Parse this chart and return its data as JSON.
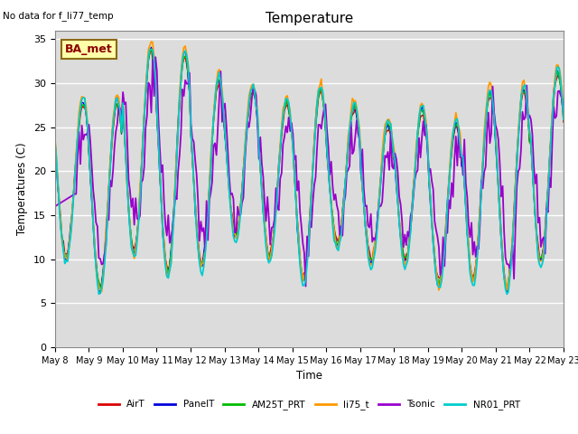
{
  "title": "Temperature",
  "xlabel": "Time",
  "ylabel": "Temperatures (C)",
  "no_data_text": "No data for f_li77_temp",
  "annotation_text": "BA_met",
  "ylim": [
    0,
    36
  ],
  "yticks": [
    0,
    5,
    10,
    15,
    20,
    25,
    30,
    35
  ],
  "x_tick_labels": [
    "May 8",
    "May 9",
    "May 10",
    "May 11",
    "May 12",
    "May 13",
    "May 14",
    "May 15",
    "May 16",
    "May 17",
    "May 18",
    "May 19",
    "May 20",
    "May 21",
    "May 22",
    "May 23"
  ],
  "background_color": "#dcdcdc",
  "series_colors": {
    "AirT": "#dd0000",
    "PanelT": "#0000dd",
    "AM25T_PRT": "#00bb00",
    "li75_t": "#ff9900",
    "Tsonic": "#9900cc",
    "NR01_PRT": "#00cccc"
  },
  "legend_order": [
    "AirT",
    "PanelT",
    "AM25T_PRT",
    "li75_t",
    "Tsonic",
    "NR01_PRT"
  ]
}
